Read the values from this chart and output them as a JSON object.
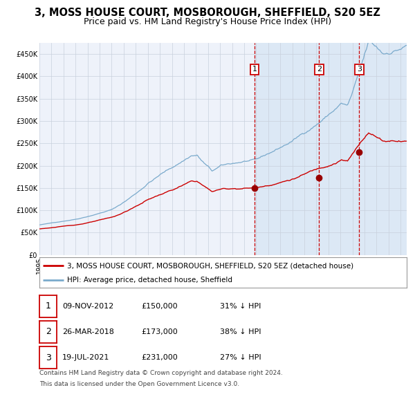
{
  "title": "3, MOSS HOUSE COURT, MOSBOROUGH, SHEFFIELD, S20 5EZ",
  "subtitle": "Price paid vs. HM Land Registry's House Price Index (HPI)",
  "legend_label_red": "3, MOSS HOUSE COURT, MOSBOROUGH, SHEFFIELD, S20 5EZ (detached house)",
  "legend_label_blue": "HPI: Average price, detached house, Sheffield",
  "footer1": "Contains HM Land Registry data © Crown copyright and database right 2024.",
  "footer2": "This data is licensed under the Open Government Licence v3.0.",
  "transactions": [
    {
      "label": "1",
      "date": "09-NOV-2012",
      "price": 150000,
      "hpi_pct": "31% ↓ HPI"
    },
    {
      "label": "2",
      "date": "26-MAR-2018",
      "price": 173000,
      "hpi_pct": "38% ↓ HPI"
    },
    {
      "label": "3",
      "date": "19-JUL-2021",
      "price": 231000,
      "hpi_pct": "27% ↓ HPI"
    }
  ],
  "transaction_dates_decimal": [
    2012.86,
    2018.23,
    2021.55
  ],
  "transaction_prices": [
    150000,
    173000,
    231000
  ],
  "ylim": [
    0,
    475000
  ],
  "xlim_start": 1995.0,
  "xlim_end": 2025.5,
  "background_color": "#ffffff",
  "plot_bg_color": "#eef2fa",
  "shaded_color": "#dce8f5",
  "grid_color": "#c8d0dc",
  "red_line_color": "#cc0000",
  "blue_line_color": "#7aaacc",
  "dashed_vline_color": "#cc0000",
  "marker_color": "#990000",
  "title_fontsize": 10.5,
  "subtitle_fontsize": 9,
  "tick_fontsize": 7,
  "legend_fontsize": 7.5,
  "footer_fontsize": 6.5
}
